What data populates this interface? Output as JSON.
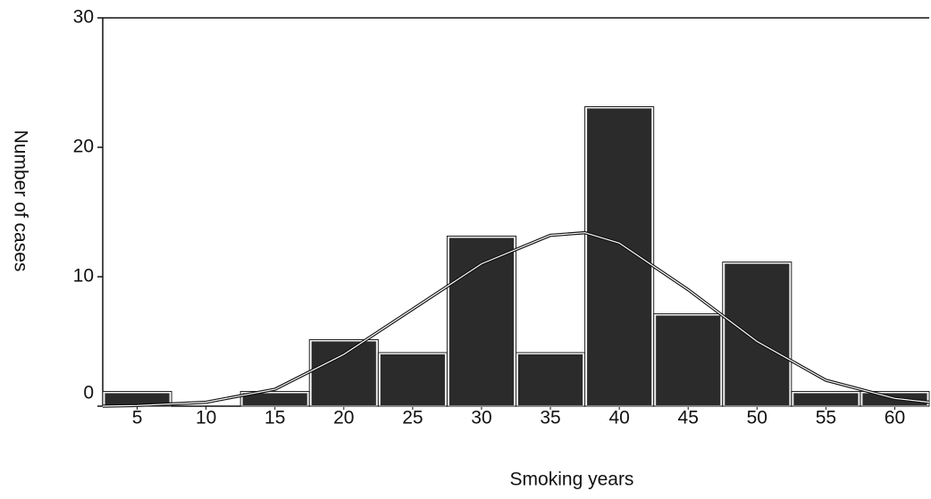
{
  "chart_data": {
    "type": "histogram",
    "x_label": "Smoking years",
    "y_label": "Number of cases",
    "bins": [
      2.5,
      7.5,
      12.5,
      17.5,
      22.5,
      27.5,
      32.5,
      37.5,
      42.5,
      47.5,
      52.5,
      57.5,
      62.5
    ],
    "values": [
      1,
      0,
      1,
      5,
      4,
      13,
      4,
      23,
      7,
      11,
      1,
      1
    ],
    "color": "#2b2b2b",
    "curve": {
      "x": [
        2.5,
        5,
        10,
        15,
        20,
        25,
        30,
        35,
        37.5,
        40,
        45,
        50,
        55,
        60,
        62.5
      ],
      "values": [
        0,
        0.05,
        0.3,
        1.3,
        4,
        7.5,
        11,
        13.2,
        13.4,
        12.6,
        9,
        5,
        2,
        0.6,
        0.3
      ]
    },
    "xlim": [
      2.5,
      62.5
    ],
    "ylim": [
      0,
      30
    ],
    "xticks": [
      5,
      10,
      15,
      20,
      25,
      30,
      35,
      40,
      45,
      50,
      55,
      60
    ],
    "yticks": [
      0,
      10,
      20,
      30
    ]
  }
}
